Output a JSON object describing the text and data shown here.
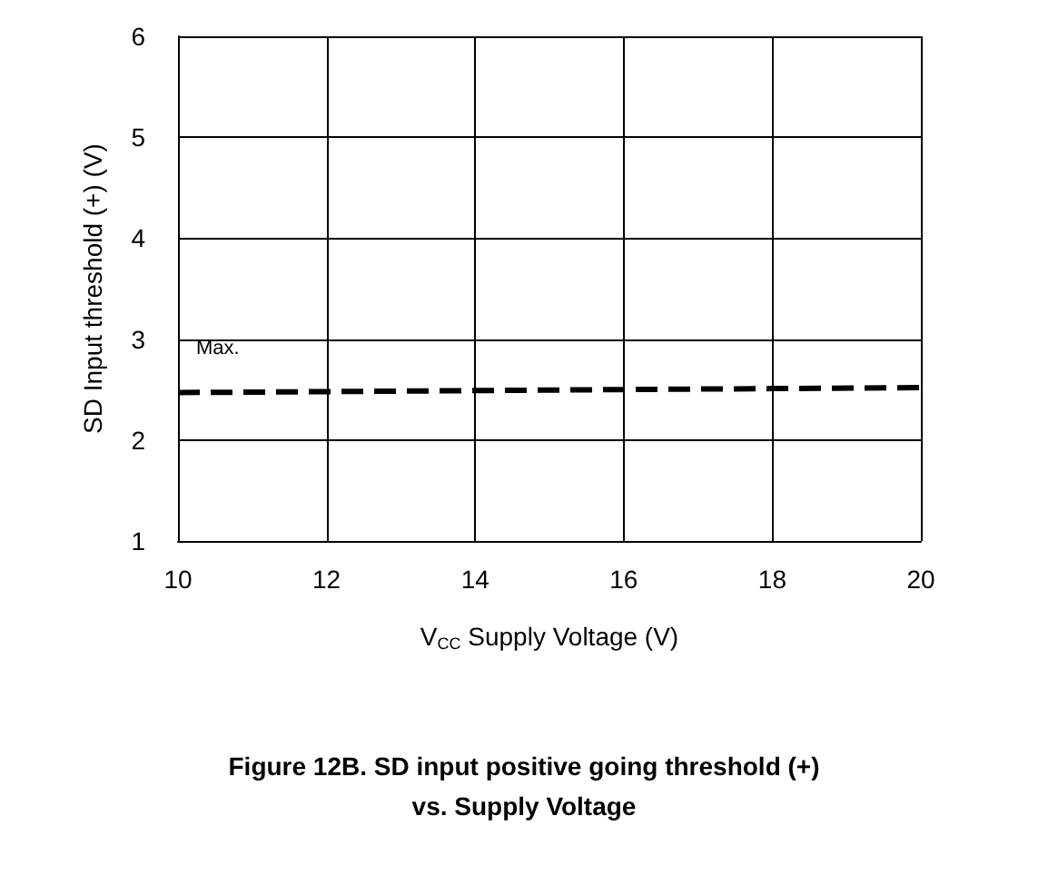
{
  "chart_data": {
    "type": "line",
    "title": "Figure 12B. SD input positive going threshold (+)\nvs. Supply Voltage",
    "xlabel": "V$_{CC}$ Supply Voltage (V)",
    "ylabel": "SD Input threshold (+) (V)",
    "x": [
      10,
      12,
      14,
      16,
      18,
      20
    ],
    "series": [
      {
        "color": "#000000",
        "values": [
          2.47,
          2.48,
          2.49,
          2.5,
          2.51,
          2.52
        ]
      }
    ],
    "annotations": [
      "Max."
    ],
    "xlim": [
      10,
      20
    ],
    "xticks": [
      10,
      12,
      14,
      16,
      18,
      20
    ],
    "ylim": [
      1,
      6
    ],
    "yticks": [
      1,
      2,
      3,
      4,
      5,
      6
    ],
    "grid": true,
    "marker": "none",
    "line_style": "dashed"
  }
}
